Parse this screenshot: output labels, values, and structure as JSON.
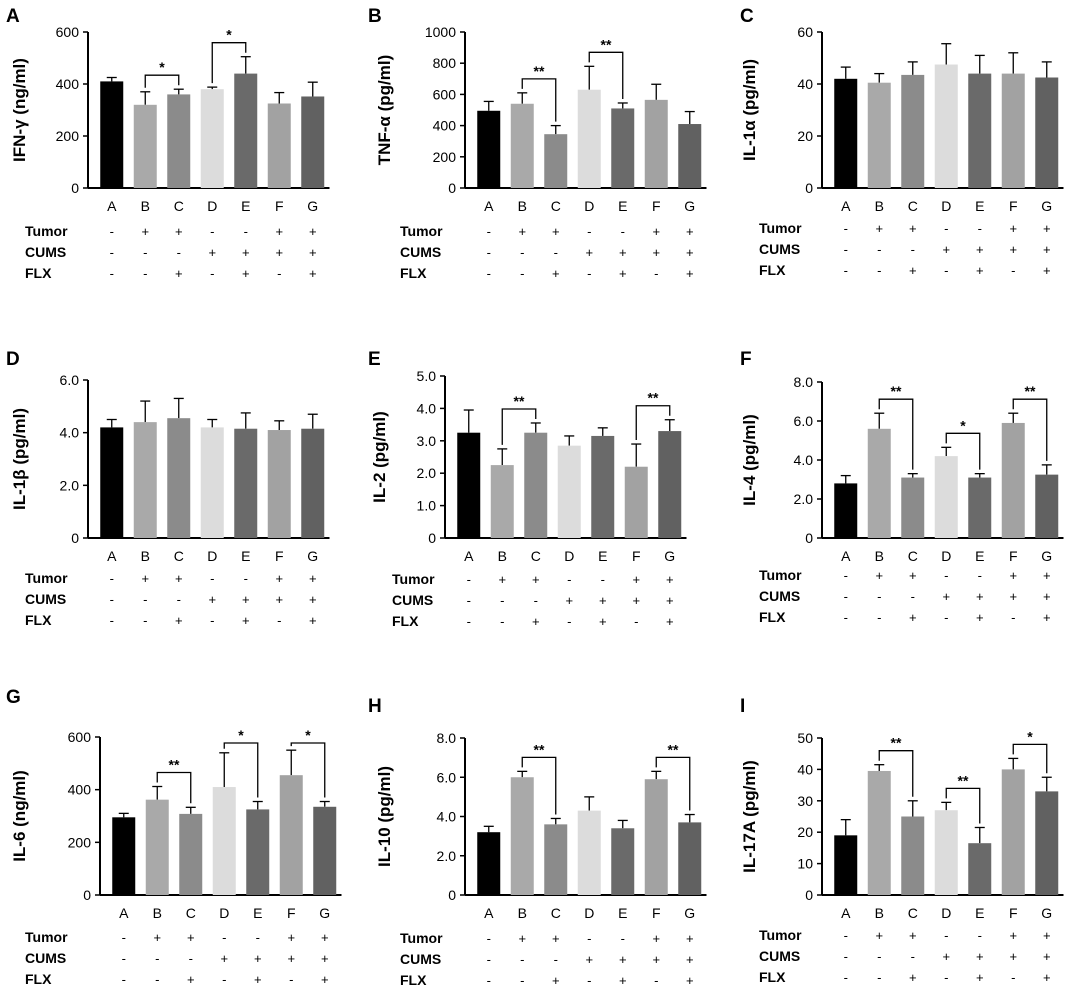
{
  "figure": {
    "categories": [
      "A",
      "B",
      "C",
      "D",
      "E",
      "F",
      "G"
    ],
    "colors": [
      "#000000",
      "#a9a9a9",
      "#8b8b8b",
      "#dcdcdc",
      "#6a6a6a",
      "#a2a2a2",
      "#616161"
    ],
    "conditions": [
      {
        "label": "Tumor",
        "signs": [
          "-",
          "+",
          "+",
          "-",
          "-",
          "+",
          "+"
        ]
      },
      {
        "label": "CUMS",
        "signs": [
          "-",
          "-",
          "-",
          "+",
          "+",
          "+",
          "+"
        ]
      },
      {
        "label": "FLX",
        "signs": [
          "-",
          "-",
          "+",
          "-",
          "+",
          "-",
          "+"
        ]
      }
    ]
  },
  "chart_data": [
    {
      "panel": "A",
      "type": "bar",
      "ylabel": "IFN-γ (ng/ml)",
      "ylim": [
        0,
        600
      ],
      "ticks": [
        "0",
        "200",
        "400",
        "600"
      ],
      "tick_values": [
        0,
        200,
        400,
        600
      ],
      "values": [
        410,
        320,
        360,
        380,
        440,
        325,
        352
      ],
      "errors": [
        15,
        50,
        20,
        8,
        65,
        42,
        55
      ],
      "significance": [
        {
          "from": 1,
          "to": 2,
          "label": "*"
        },
        {
          "from": 3,
          "to": 4,
          "label": "*"
        }
      ]
    },
    {
      "panel": "B",
      "type": "bar",
      "ylabel": "TNF-α (pg/ml)",
      "ylim": [
        0,
        1000
      ],
      "ticks": [
        "0",
        "200",
        "400",
        "600",
        "800",
        "1000"
      ],
      "tick_values": [
        0,
        200,
        400,
        600,
        800,
        1000
      ],
      "values": [
        495,
        540,
        345,
        630,
        510,
        565,
        410
      ],
      "errors": [
        60,
        70,
        55,
        150,
        35,
        100,
        80
      ],
      "significance": [
        {
          "from": 1,
          "to": 2,
          "label": "**"
        },
        {
          "from": 3,
          "to": 4,
          "label": "**"
        }
      ]
    },
    {
      "panel": "C",
      "type": "bar",
      "ylabel": "IL-1α (pg/ml)",
      "ylim": [
        0,
        60
      ],
      "ticks": [
        "0",
        "20",
        "40",
        "60"
      ],
      "tick_values": [
        0,
        20,
        40,
        60
      ],
      "values": [
        42,
        40.5,
        43.5,
        47.5,
        44,
        44,
        42.5
      ],
      "errors": [
        4.5,
        3.5,
        5,
        8,
        7,
        8,
        6
      ],
      "significance": []
    },
    {
      "panel": "D",
      "type": "bar",
      "ylabel": "IL-1β (pg/ml)",
      "ylim": [
        0,
        6
      ],
      "ticks": [
        "0",
        "2.0",
        "4.0",
        "6.0"
      ],
      "tick_values": [
        0,
        2,
        4,
        6
      ],
      "values": [
        4.2,
        4.4,
        4.55,
        4.2,
        4.15,
        4.1,
        4.15
      ],
      "errors": [
        0.3,
        0.8,
        0.75,
        0.3,
        0.6,
        0.35,
        0.55
      ],
      "significance": []
    },
    {
      "panel": "E",
      "type": "bar",
      "ylabel": "IL-2 (pg/ml)",
      "ylim": [
        0,
        5
      ],
      "ticks": [
        "0",
        "1.0",
        "2.0",
        "3.0",
        "4.0",
        "5.0"
      ],
      "tick_values": [
        0,
        1,
        2,
        3,
        4,
        5
      ],
      "values": [
        3.25,
        2.25,
        3.25,
        2.85,
        3.15,
        2.2,
        3.3
      ],
      "errors": [
        0.7,
        0.5,
        0.3,
        0.3,
        0.25,
        0.7,
        0.35
      ],
      "significance": [
        {
          "from": 1,
          "to": 2,
          "label": "**"
        },
        {
          "from": 5,
          "to": 6,
          "label": "**"
        }
      ]
    },
    {
      "panel": "F",
      "type": "bar",
      "ylabel": "IL-4 (pg/ml)",
      "ylim": [
        0,
        8
      ],
      "ticks": [
        "0",
        "2.0",
        "4.0",
        "6.0",
        "8.0"
      ],
      "tick_values": [
        0,
        2,
        4,
        6,
        8
      ],
      "values": [
        2.8,
        5.6,
        3.1,
        4.2,
        3.1,
        5.9,
        3.25
      ],
      "errors": [
        0.4,
        0.8,
        0.2,
        0.45,
        0.2,
        0.5,
        0.5
      ],
      "significance": [
        {
          "from": 1,
          "to": 2,
          "label": "**"
        },
        {
          "from": 3,
          "to": 4,
          "label": "*"
        },
        {
          "from": 5,
          "to": 6,
          "label": "**"
        }
      ]
    },
    {
      "panel": "G",
      "type": "bar",
      "ylabel": "IL-6 (ng/ml)",
      "ylim": [
        0,
        600
      ],
      "ticks": [
        "0",
        "200",
        "400",
        "600"
      ],
      "tick_values": [
        0,
        200,
        400,
        600
      ],
      "values": [
        295,
        362,
        308,
        410,
        325,
        455,
        335
      ],
      "errors": [
        15,
        50,
        25,
        130,
        30,
        95,
        20
      ],
      "significance": [
        {
          "from": 1,
          "to": 2,
          "label": "**"
        },
        {
          "from": 3,
          "to": 4,
          "label": "*"
        },
        {
          "from": 5,
          "to": 6,
          "label": "*"
        }
      ]
    },
    {
      "panel": "H",
      "type": "bar",
      "ylabel": "IL-10 (pg/ml)",
      "ylim": [
        0,
        8
      ],
      "ticks": [
        "0",
        "2.0",
        "4.0",
        "6.0",
        "8.0"
      ],
      "tick_values": [
        0,
        2,
        4,
        6,
        8
      ],
      "values": [
        3.2,
        6.0,
        3.6,
        4.3,
        3.4,
        5.9,
        3.7
      ],
      "errors": [
        0.3,
        0.3,
        0.3,
        0.7,
        0.4,
        0.4,
        0.4
      ],
      "significance": [
        {
          "from": 1,
          "to": 2,
          "label": "**"
        },
        {
          "from": 5,
          "to": 6,
          "label": "**"
        }
      ]
    },
    {
      "panel": "I",
      "type": "bar",
      "ylabel": "IL-17A (pg/ml)",
      "ylim": [
        0,
        50
      ],
      "ticks": [
        "0",
        "10",
        "20",
        "30",
        "40",
        "50"
      ],
      "tick_values": [
        0,
        10,
        20,
        30,
        40,
        50
      ],
      "values": [
        19,
        39.5,
        25,
        27,
        16.5,
        40,
        33
      ],
      "errors": [
        5,
        2,
        5,
        2.5,
        5,
        3.5,
        4.5
      ],
      "significance": [
        {
          "from": 1,
          "to": 2,
          "label": "**"
        },
        {
          "from": 3,
          "to": 4,
          "label": "**"
        },
        {
          "from": 5,
          "to": 6,
          "label": "*"
        }
      ]
    }
  ]
}
